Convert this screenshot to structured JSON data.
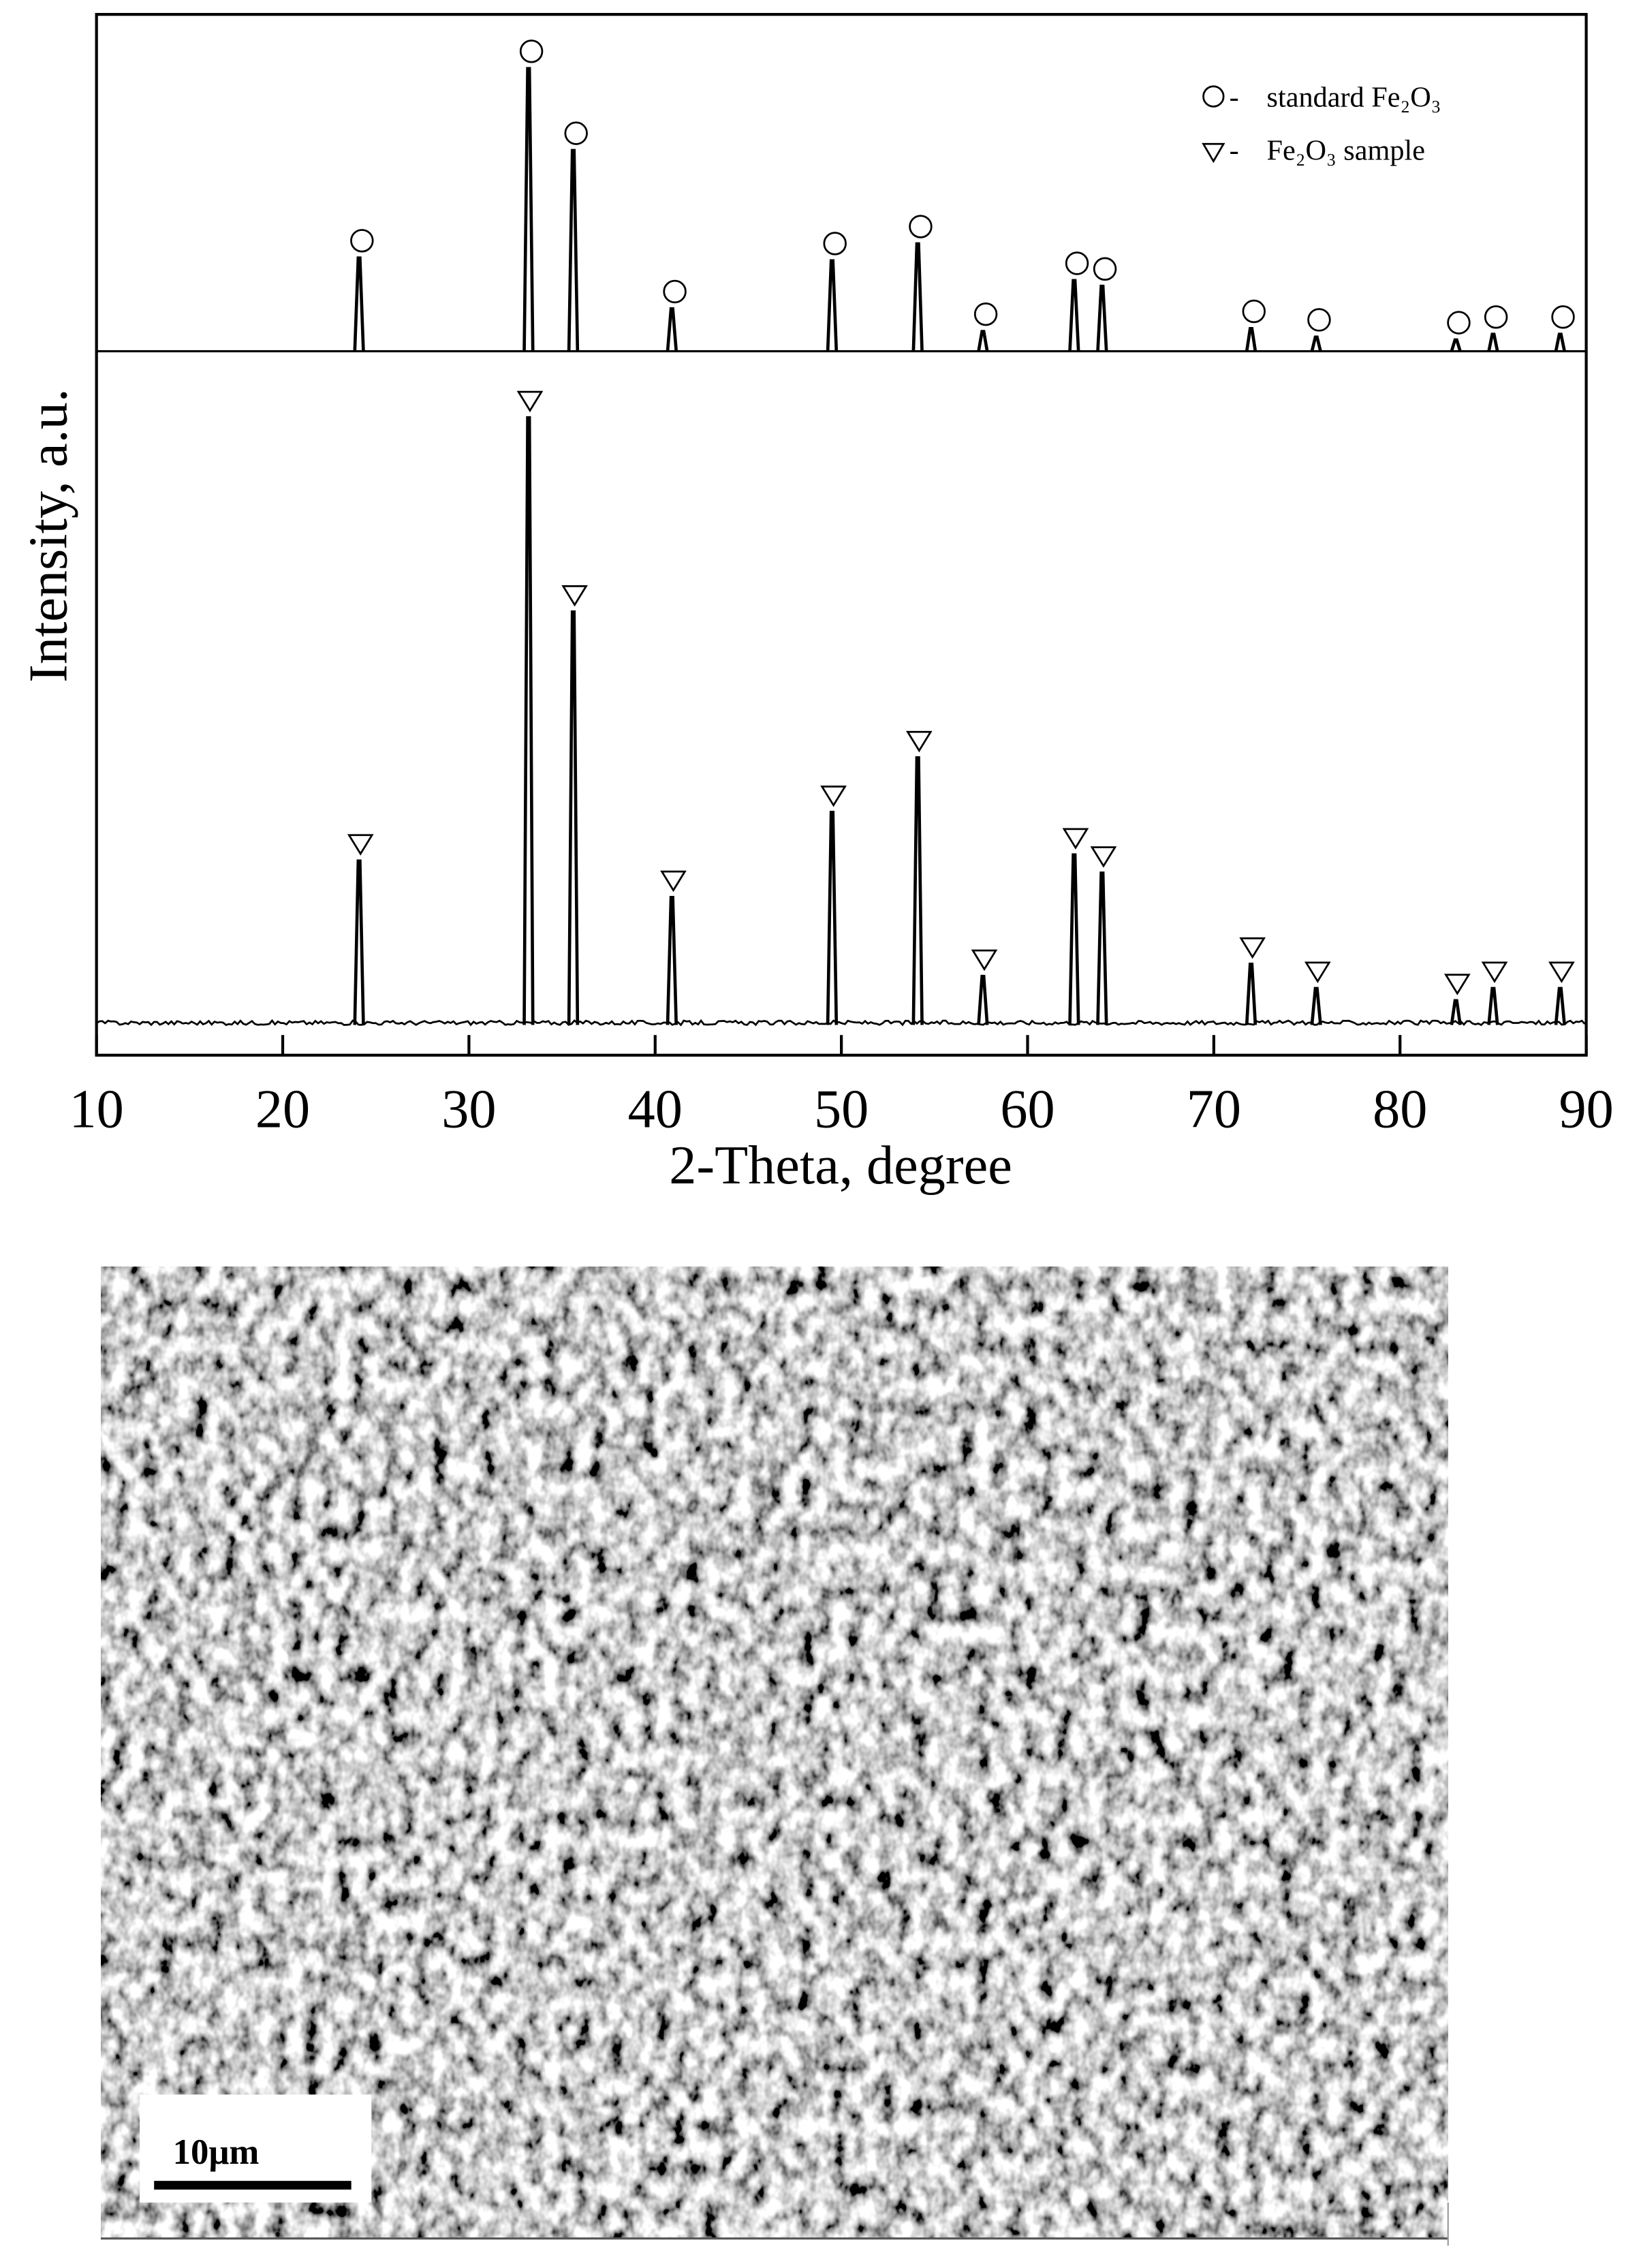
{
  "chart_data": {
    "type": "xrd",
    "x_label": "2-Theta, degree",
    "y_label": "Intensity, a.u.",
    "xlim": [
      10,
      90
    ],
    "xticks": [
      10,
      20,
      30,
      40,
      50,
      60,
      70,
      80,
      90
    ],
    "ylim": [
      0,
      110
    ],
    "series": [
      {
        "name": "standard Fe₂O₃",
        "marker": "circle",
        "color": "#000000",
        "x": [
          24.1,
          33.2,
          35.6,
          40.9,
          49.5,
          54.1,
          57.6,
          62.5,
          64.0,
          72.0,
          75.5,
          83.0,
          85.0,
          88.6
        ],
        "values": [
          33,
          100,
          71,
          15,
          32,
          38,
          7,
          25,
          23,
          8,
          5,
          4,
          6,
          6
        ]
      },
      {
        "name": "Fe₂O₃ sample",
        "marker": "triangle",
        "color": "#000000",
        "x": [
          24.1,
          33.2,
          35.6,
          40.9,
          49.5,
          54.1,
          57.6,
          62.5,
          64.0,
          72.0,
          75.5,
          83.0,
          85.0,
          88.6
        ],
        "values": [
          27,
          100,
          68,
          21,
          35,
          44,
          8,
          28,
          25,
          10,
          6,
          4,
          6,
          6
        ]
      }
    ]
  },
  "image": {
    "scale_bar": "10μm"
  }
}
